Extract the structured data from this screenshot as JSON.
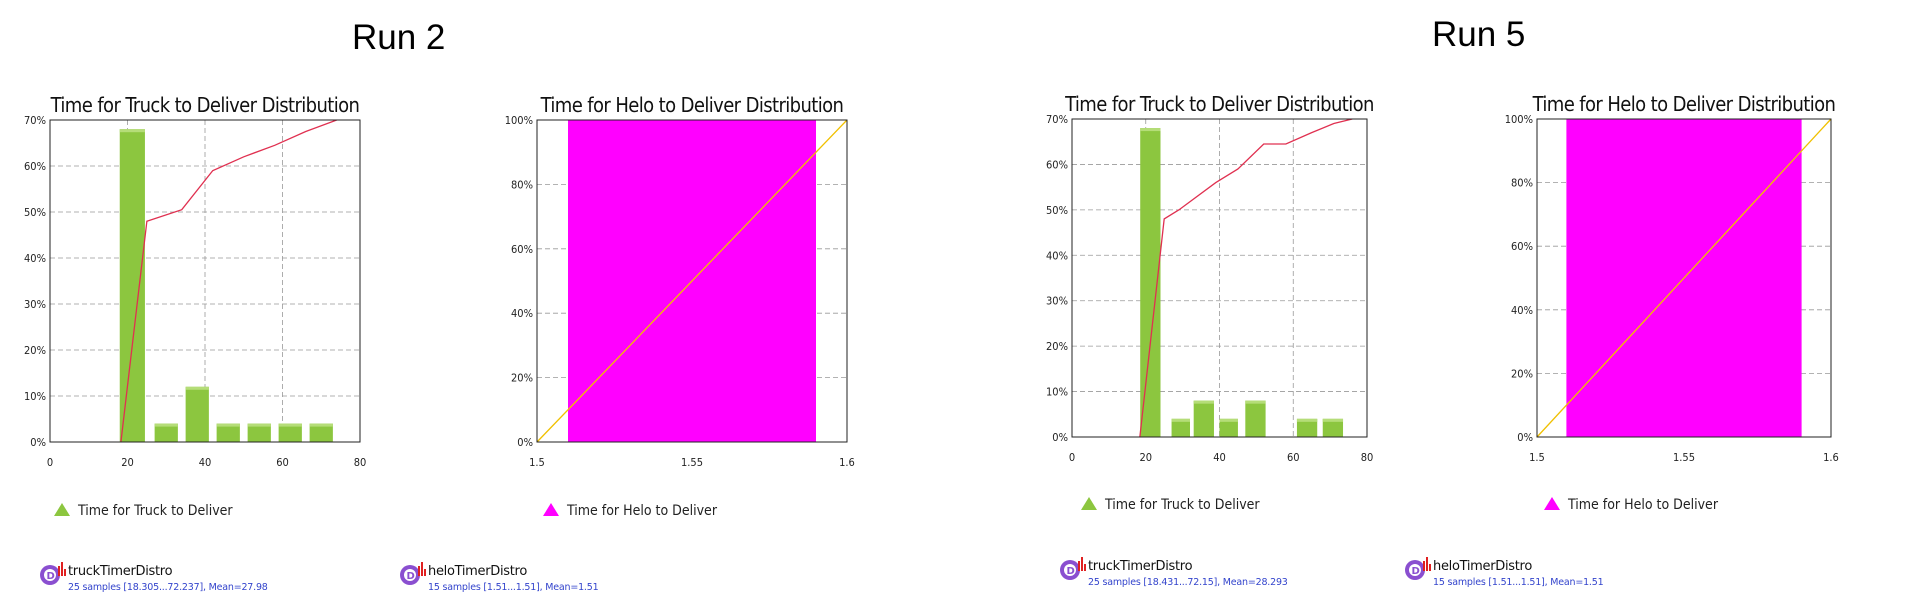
{
  "runs": [
    {
      "title": "Run 2"
    },
    {
      "title": "Run 5"
    }
  ],
  "charts": [
    {
      "title": "Time for Truck to Deliver Distribution",
      "legend": "Time for Truck to Deliver",
      "color": "#8cc63f",
      "info_name": "truckTimerDistro",
      "info_stats": "25 samples [18.305...72.237], Mean=27.98"
    },
    {
      "title": "Time for Helo to Deliver Distribution",
      "legend": "Time for Helo to Deliver",
      "color": "#ff00ff",
      "info_name": "heloTimerDistro",
      "info_stats": "15 samples [1.51...1.51], Mean=1.51"
    },
    {
      "title": "Time for Truck to Deliver Distribution",
      "legend": "Time for Truck to Deliver",
      "color": "#8cc63f",
      "info_name": "truckTimerDistro",
      "info_stats": "25 samples [18.431...72.15], Mean=28.293"
    },
    {
      "title": "Time for Helo to Deliver Distribution",
      "legend": "Time for Helo to Deliver",
      "color": "#ff00ff",
      "info_name": "heloTimerDistro",
      "info_stats": "15 samples [1.51...1.51], Mean=1.51"
    }
  ],
  "chart_data": [
    {
      "type": "bar",
      "title": "Time for Truck to Deliver Distribution",
      "run": "Run 2",
      "x_ticks": [
        0,
        20,
        40,
        60,
        80
      ],
      "xlim": [
        0,
        80
      ],
      "y_ticks": [
        "0%",
        "10%",
        "20%",
        "30%",
        "40%",
        "50%",
        "60%",
        "70%"
      ],
      "ylim": [
        0,
        70
      ],
      "bars": [
        {
          "x0": 18,
          "x1": 24.5,
          "value": 68
        },
        {
          "x0": 27,
          "x1": 33,
          "value": 4
        },
        {
          "x0": 35,
          "x1": 41,
          "value": 12
        },
        {
          "x0": 43,
          "x1": 49,
          "value": 4
        },
        {
          "x0": 51,
          "x1": 57,
          "value": 4
        },
        {
          "x0": 59,
          "x1": 65,
          "value": 4
        },
        {
          "x0": 67,
          "x1": 73,
          "value": 4
        }
      ],
      "cumulative": {
        "x": [
          18.3,
          25,
          34,
          42,
          50,
          58,
          66,
          74
        ],
        "y": [
          0,
          48,
          50.5,
          59,
          62,
          64.5,
          67.5,
          70
        ]
      },
      "bar_color": "#8cc63f",
      "line_color": "#e03050",
      "grid": true,
      "legend": "Time for Truck to Deliver"
    },
    {
      "type": "bar",
      "title": "Time for Helo to Deliver Distribution",
      "run": "Run 2",
      "x_ticks": [
        "1.5",
        "1.55",
        "1.6"
      ],
      "xlim": [
        1.5,
        1.6
      ],
      "y_ticks": [
        "0%",
        "20%",
        "40%",
        "60%",
        "80%",
        "100%"
      ],
      "ylim": [
        0,
        100
      ],
      "bars": [
        {
          "x0": 1.51,
          "x1": 1.59,
          "value": 100
        }
      ],
      "cumulative": {
        "x": [
          1.5,
          1.6
        ],
        "y": [
          0,
          100
        ]
      },
      "bar_color": "#ff00ff",
      "line_color": "#f0c000",
      "grid": true,
      "legend": "Time for Helo to Deliver"
    },
    {
      "type": "bar",
      "title": "Time for Truck to Deliver Distribution",
      "run": "Run 5",
      "x_ticks": [
        0,
        20,
        40,
        60,
        80
      ],
      "xlim": [
        0,
        80
      ],
      "y_ticks": [
        "0%",
        "10%",
        "20%",
        "30%",
        "40%",
        "50%",
        "60%",
        "70%"
      ],
      "ylim": [
        0,
        70
      ],
      "bars": [
        {
          "x0": 18.5,
          "x1": 24,
          "value": 68
        },
        {
          "x0": 27,
          "x1": 32,
          "value": 4
        },
        {
          "x0": 33,
          "x1": 38.5,
          "value": 8
        },
        {
          "x0": 40,
          "x1": 45,
          "value": 4
        },
        {
          "x0": 47,
          "x1": 52.5,
          "value": 8
        },
        {
          "x0": 61,
          "x1": 66.5,
          "value": 4
        },
        {
          "x0": 68,
          "x1": 73.5,
          "value": 4
        }
      ],
      "cumulative": {
        "x": [
          18.4,
          25,
          29,
          39,
          45,
          52,
          58,
          65,
          71,
          76
        ],
        "y": [
          0,
          48,
          50,
          56,
          59,
          64.5,
          64.5,
          67,
          69,
          70
        ]
      },
      "bar_color": "#8cc63f",
      "line_color": "#e03050",
      "grid": true,
      "legend": "Time for Truck to Deliver"
    },
    {
      "type": "bar",
      "title": "Time for Helo to Deliver Distribution",
      "run": "Run 5",
      "x_ticks": [
        "1.5",
        "1.55",
        "1.6"
      ],
      "xlim": [
        1.5,
        1.6
      ],
      "y_ticks": [
        "0%",
        "20%",
        "40%",
        "60%",
        "80%",
        "100%"
      ],
      "ylim": [
        0,
        100
      ],
      "bars": [
        {
          "x0": 1.51,
          "x1": 1.59,
          "value": 100
        }
      ],
      "cumulative": {
        "x": [
          1.5,
          1.6
        ],
        "y": [
          0,
          100
        ]
      },
      "bar_color": "#ff00ff",
      "line_color": "#f0c000",
      "grid": true,
      "legend": "Time for Helo to Deliver"
    }
  ]
}
